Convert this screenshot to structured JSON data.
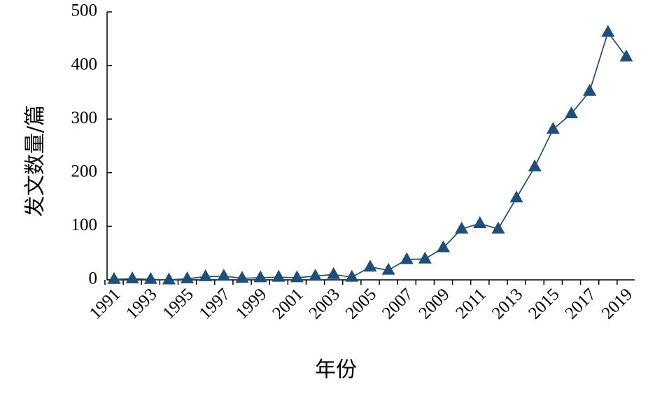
{
  "chart_data": {
    "type": "line",
    "title": "",
    "xlabel": "年份",
    "ylabel": "发文数量/篇",
    "x": [
      1991,
      1992,
      1993,
      1994,
      1995,
      1996,
      1997,
      1998,
      1999,
      2000,
      2001,
      2002,
      2003,
      2004,
      2005,
      2006,
      2007,
      2008,
      2009,
      2010,
      2011,
      2012,
      2013,
      2014,
      2015,
      2016,
      2017,
      2018,
      2019
    ],
    "x_tick_labels": [
      "1991",
      "1993",
      "1995",
      "1997",
      "1999",
      "2001",
      "2003",
      "2005",
      "2007",
      "2009",
      "2011",
      "2013",
      "2015",
      "2017",
      "2019"
    ],
    "y_tick_labels": [
      "0",
      "100",
      "200",
      "300",
      "400",
      "500"
    ],
    "series": [
      {
        "values": [
          1,
          2,
          1,
          0,
          2,
          6,
          7,
          3,
          4,
          5,
          4,
          7,
          10,
          5,
          24,
          18,
          38,
          39,
          60,
          95,
          105,
          95,
          153,
          211,
          281,
          310,
          352,
          462,
          416
        ],
        "color": "#1f4e79",
        "marker": "triangle"
      }
    ],
    "ylim": [
      0,
      500
    ],
    "grid": false,
    "legend": "none"
  }
}
